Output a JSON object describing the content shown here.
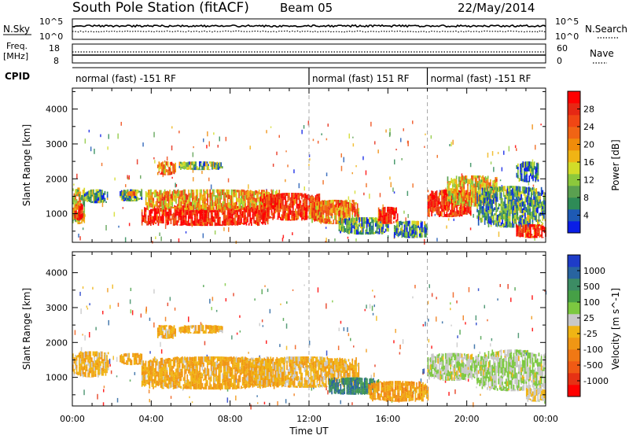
{
  "header": {
    "station": "South Pole Station (fitACF)",
    "beam": "Beam 05",
    "date": "22/May/2014"
  },
  "aux_panels": {
    "nsky_label": "N.Sky",
    "nsearch_label": "N.Search",
    "freq_label_1": "Freq.",
    "freq_label_2": "[MHz]",
    "nave_label": "Nave",
    "cpid_label": "CPID",
    "left_ticks_top": [
      "10^5",
      "10^0"
    ],
    "right_ticks_top": [
      "10^5",
      "10^0"
    ],
    "freq_ticks": [
      "18",
      "8"
    ],
    "nave_ticks": [
      "60",
      "0"
    ],
    "cpid_segments": [
      {
        "label": "normal (fast) -151 RF",
        "start_hour": 0
      },
      {
        "label": "normal (fast) 151 RF",
        "start_hour": 12
      },
      {
        "label": "normal (fast) -151 RF",
        "start_hour": 18
      }
    ]
  },
  "colorbars": {
    "power": {
      "label": "Power [dB]",
      "ticks": [
        "28",
        "24",
        "20",
        "16",
        "12",
        "8",
        "4"
      ],
      "colors": [
        "#0a1ee6",
        "#1e5ab4",
        "#2e8b57",
        "#5aa050",
        "#8cc83c",
        "#d2dc28",
        "#f0b414",
        "#f08c0a",
        "#f06414",
        "#f04614",
        "#e62814",
        "#ff0000"
      ]
    },
    "velocity": {
      "label": "Velocity [m s^-1]",
      "ticks": [
        "1000",
        "500",
        "100",
        "25",
        "-25",
        "-100",
        "-500",
        "-1000"
      ],
      "colors": [
        "#1e3cc8",
        "#2864a0",
        "#3c8c64",
        "#46a046",
        "#7cc840",
        "#c8c8c8",
        "#f0b414",
        "#f09614",
        "#f07814",
        "#f05a14",
        "#e63214",
        "#ff0000"
      ]
    }
  },
  "chart_data": [
    {
      "type": "heatmap",
      "title": "Power",
      "xlabel": "",
      "ylabel": "Slant Range [km]",
      "xlim": [
        0,
        24
      ],
      "ylim": [
        180,
        4600
      ],
      "x_ticks": [
        "00:00",
        "04:00",
        "08:00",
        "12:00",
        "16:00",
        "20:00",
        "00:00"
      ],
      "y_ticks": [
        1000,
        2000,
        3000,
        4000
      ],
      "zlabel": "Power [dB]",
      "zlim": [
        0,
        30
      ],
      "blobs": [
        {
          "x0": 0.0,
          "x1": 0.6,
          "y0": 700,
          "y1": 1750,
          "value": 14
        },
        {
          "x0": 0.1,
          "x1": 0.5,
          "y0": 800,
          "y1": 1300,
          "value": 26
        },
        {
          "x0": 0.6,
          "x1": 1.8,
          "y0": 1300,
          "y1": 1700,
          "value": 8
        },
        {
          "x0": 2.4,
          "x1": 3.5,
          "y0": 1350,
          "y1": 1700,
          "value": 8
        },
        {
          "x0": 2.8,
          "x1": 3.2,
          "y0": 1500,
          "y1": 1650,
          "value": 22
        },
        {
          "x0": 3.5,
          "x1": 10.0,
          "y0": 650,
          "y1": 1250,
          "value": 27
        },
        {
          "x0": 3.7,
          "x1": 10.5,
          "y0": 1100,
          "y1": 1700,
          "value": 18
        },
        {
          "x0": 4.3,
          "x1": 5.2,
          "y0": 2100,
          "y1": 2500,
          "value": 20
        },
        {
          "x0": 5.4,
          "x1": 7.6,
          "y0": 2250,
          "y1": 2500,
          "value": 10
        },
        {
          "x0": 9.5,
          "x1": 12.5,
          "y0": 800,
          "y1": 1600,
          "value": 26
        },
        {
          "x0": 12.0,
          "x1": 14.5,
          "y0": 700,
          "y1": 1400,
          "value": 20
        },
        {
          "x0": 13.5,
          "x1": 16.0,
          "y0": 400,
          "y1": 900,
          "value": 8
        },
        {
          "x0": 15.5,
          "x1": 16.5,
          "y0": 700,
          "y1": 1200,
          "value": 26
        },
        {
          "x0": 16.3,
          "x1": 18.0,
          "y0": 300,
          "y1": 800,
          "value": 8
        },
        {
          "x0": 18.0,
          "x1": 20.2,
          "y0": 900,
          "y1": 1700,
          "value": 26
        },
        {
          "x0": 19.0,
          "x1": 21.5,
          "y0": 1200,
          "y1": 2100,
          "value": 16
        },
        {
          "x0": 20.5,
          "x1": 24.0,
          "y0": 600,
          "y1": 1800,
          "value": 8
        },
        {
          "x0": 22.5,
          "x1": 24.0,
          "y0": 300,
          "y1": 700,
          "value": 26
        },
        {
          "x0": 22.5,
          "x1": 23.6,
          "y0": 1900,
          "y1": 2500,
          "value": 6
        }
      ]
    },
    {
      "type": "heatmap",
      "title": "Velocity",
      "xlabel": "Time UT",
      "ylabel": "Slant Range [km]",
      "xlim": [
        0,
        24
      ],
      "ylim": [
        180,
        4600
      ],
      "x_ticks": [
        "00:00",
        "04:00",
        "08:00",
        "12:00",
        "16:00",
        "20:00",
        "00:00"
      ],
      "y_ticks": [
        1000,
        2000,
        3000,
        4000
      ],
      "zlabel": "Velocity [m s^-1]",
      "zlim": [
        -1000,
        1000
      ],
      "blobs": [
        {
          "x0": 0.0,
          "x1": 1.8,
          "y0": 1000,
          "y1": 1750,
          "value": -120
        },
        {
          "x0": 2.4,
          "x1": 3.5,
          "y0": 1350,
          "y1": 1700,
          "value": -150
        },
        {
          "x0": 3.5,
          "x1": 10.5,
          "y0": 650,
          "y1": 1600,
          "value": -150
        },
        {
          "x0": 4.3,
          "x1": 5.2,
          "y0": 2100,
          "y1": 2500,
          "value": -150
        },
        {
          "x0": 5.4,
          "x1": 7.6,
          "y0": 2250,
          "y1": 2500,
          "value": -150
        },
        {
          "x0": 9.0,
          "x1": 14.5,
          "y0": 700,
          "y1": 1600,
          "value": -100
        },
        {
          "x0": 13.0,
          "x1": 15.5,
          "y0": 500,
          "y1": 1000,
          "value": 600
        },
        {
          "x0": 15.0,
          "x1": 18.0,
          "y0": 300,
          "y1": 900,
          "value": -200
        },
        {
          "x0": 18.0,
          "x1": 20.5,
          "y0": 900,
          "y1": 1700,
          "value": 150
        },
        {
          "x0": 20.5,
          "x1": 24.0,
          "y0": 600,
          "y1": 1800,
          "value": 150
        },
        {
          "x0": 23.0,
          "x1": 24.0,
          "y0": 300,
          "y1": 700,
          "value": 0
        }
      ]
    }
  ]
}
